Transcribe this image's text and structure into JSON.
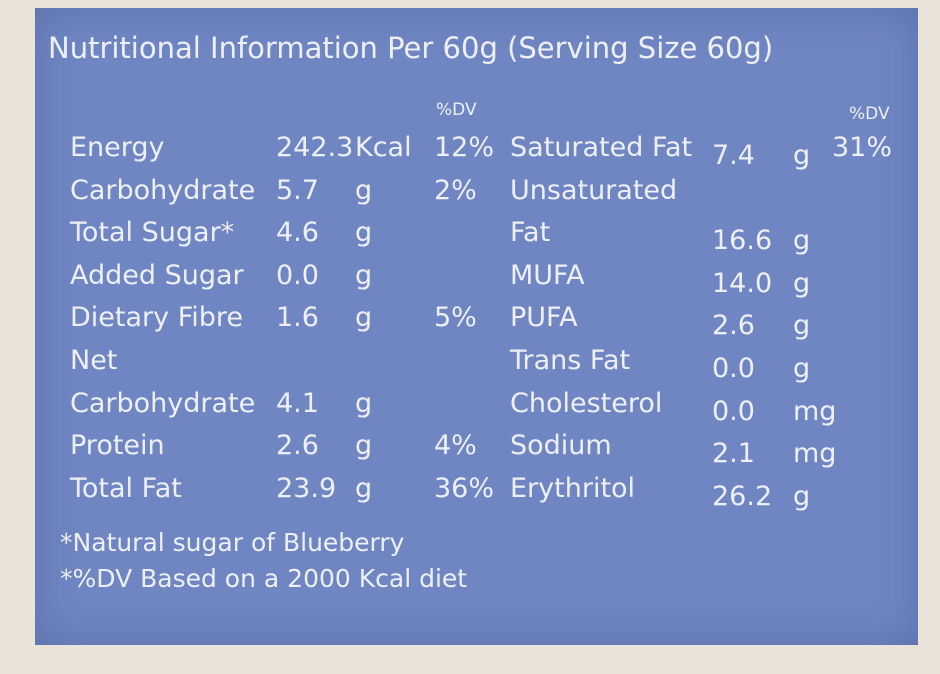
{
  "title": "Nutritional Information Per 60g (Serving Size 60g)",
  "left": {
    "dv_header": "%DV",
    "rows": [
      {
        "name": "Energy",
        "value": "242.3",
        "unit": "Kcal",
        "dv": "12%"
      },
      {
        "name": "Carbohydrate",
        "value": "5.7",
        "unit": "g",
        "dv": "2%"
      },
      {
        "name": "Total Sugar*",
        "value": "4.6",
        "unit": "g"
      },
      {
        "name": "Added Sugar",
        "value": "0.0",
        "unit": "g"
      },
      {
        "name": "Dietary Fibre",
        "value": "1.6",
        "unit": "g",
        "dv": "5%"
      },
      {
        "name": "Net"
      },
      {
        "name": "Carbohydrate",
        "value": "4.1",
        "unit": "g"
      },
      {
        "name": "Protein",
        "value": "2.6",
        "unit": "g",
        "dv": "4%"
      },
      {
        "name": "Total Fat",
        "value": "23.9",
        "unit": "g",
        "dv": "36%"
      }
    ]
  },
  "right": {
    "dv_header": "%DV",
    "rows": [
      {
        "name": "Saturated Fat",
        "value": "7.4",
        "unit": "g",
        "dv": "31%"
      },
      {
        "name": "Unsaturated"
      },
      {
        "name": "Fat",
        "value": "16.6",
        "unit": "g"
      },
      {
        "name": "MUFA",
        "value": "14.0",
        "unit": "g"
      },
      {
        "name": "PUFA",
        "value": "2.6",
        "unit": "g"
      },
      {
        "name": "Trans Fat",
        "value": "0.0",
        "unit": "g"
      },
      {
        "name": "Cholesterol",
        "value": "0.0",
        "unit": "mg"
      },
      {
        "name": "Sodium",
        "value": "2.1",
        "unit": "mg"
      },
      {
        "name": "Erythritol",
        "value": "26.2",
        "unit": "g"
      }
    ]
  },
  "footnotes": [
    "*Natural sugar of Blueberry",
    "*%DV Based on a 2000 Kcal diet"
  ]
}
